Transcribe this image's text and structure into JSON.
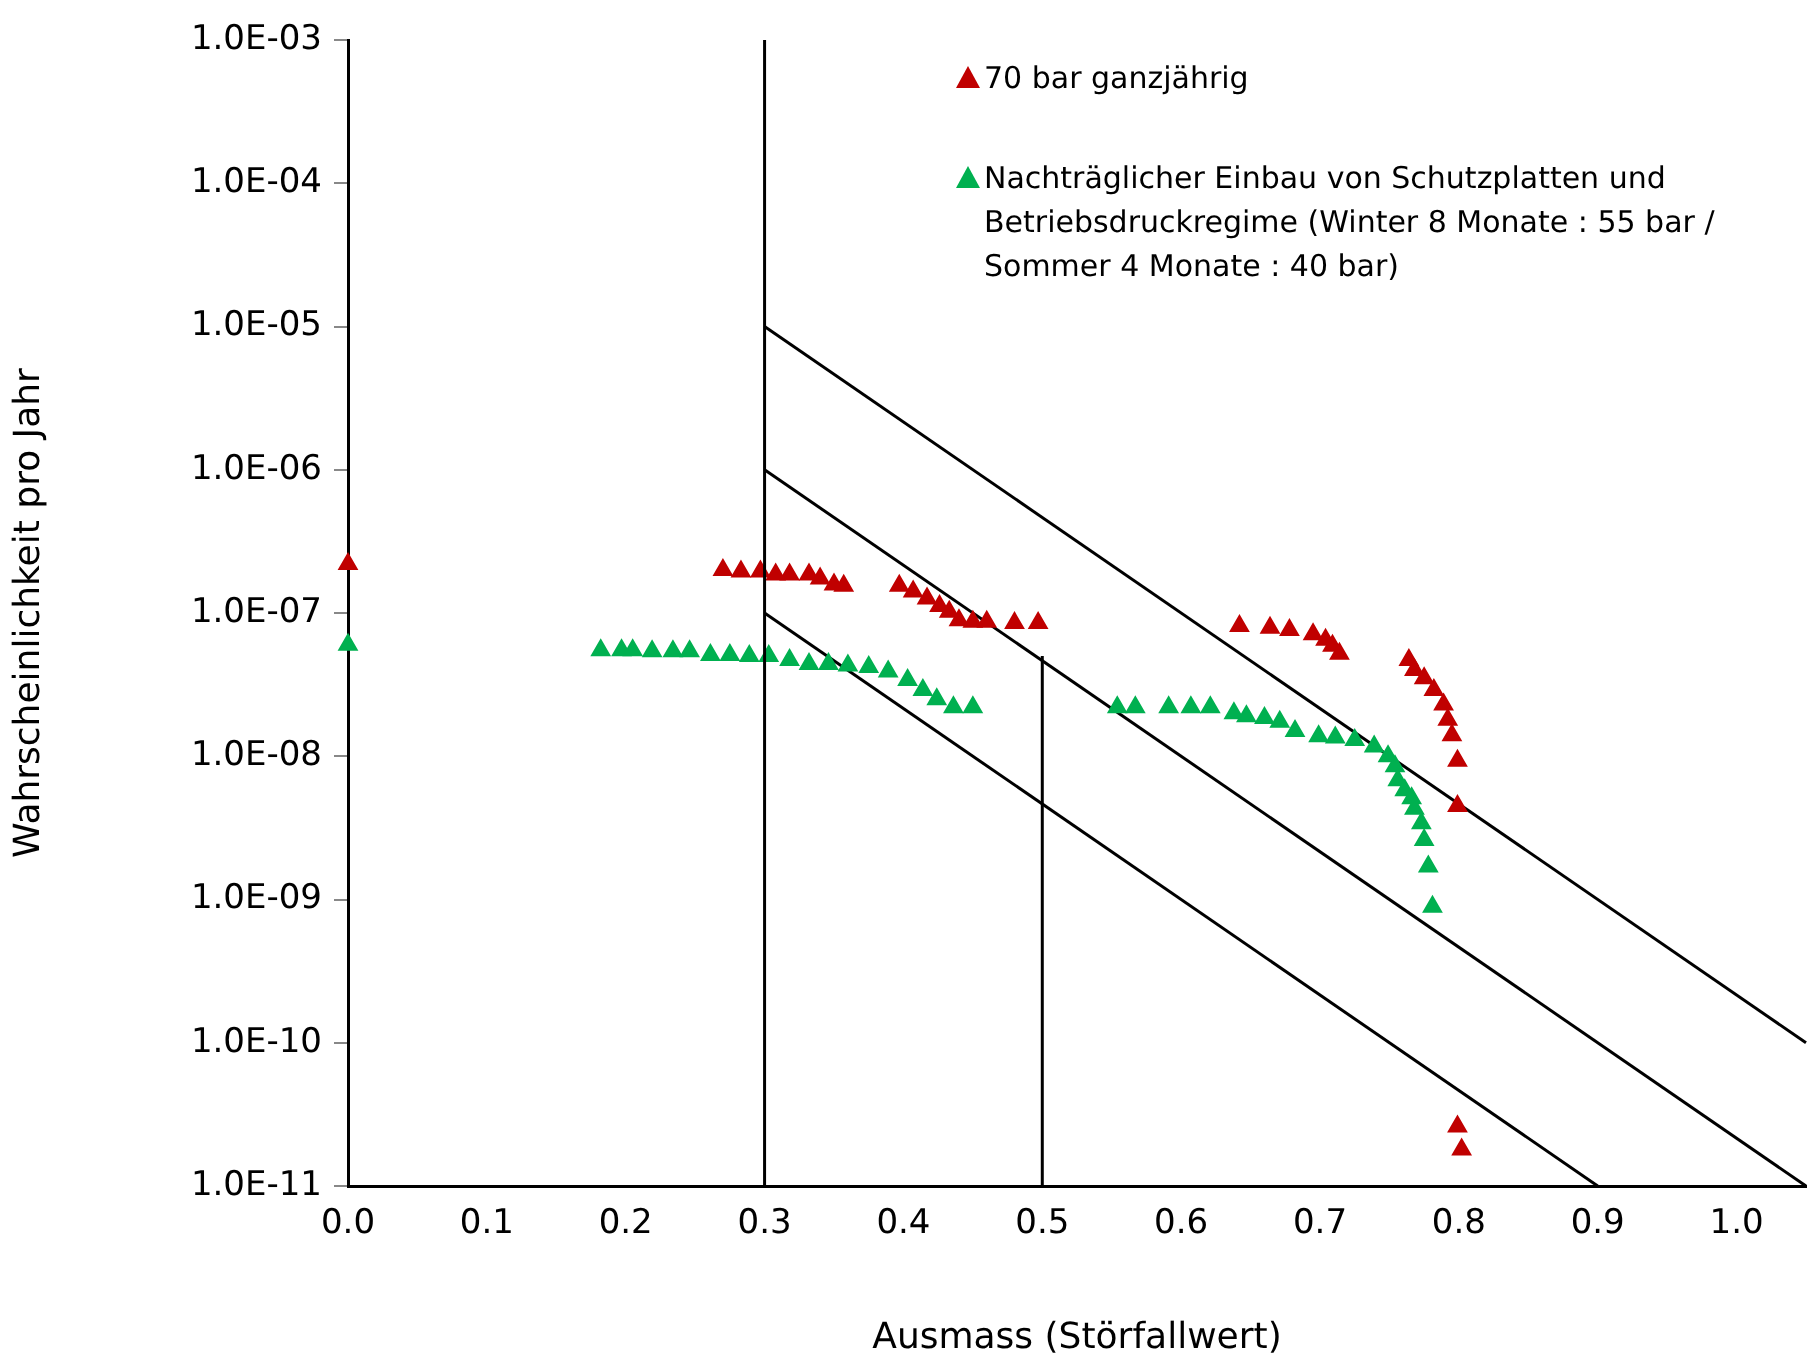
{
  "chart_data": {
    "type": "scatter",
    "xlabel": "Ausmass (Störfallwert)",
    "ylabel": "Wahrscheinlichkeit pro Jahr",
    "log": "y",
    "grid": false,
    "legend": "top right",
    "marker": "triangle",
    "xlim": [
      0,
      1.05
    ],
    "xticks": [
      {
        "value": 0,
        "label": "0.0"
      },
      {
        "value": 0.1,
        "label": "0.1"
      },
      {
        "value": 0.2,
        "label": "0.2"
      },
      {
        "value": 0.3,
        "label": "0.3"
      },
      {
        "value": 0.4,
        "label": "0.4"
      },
      {
        "value": 0.5,
        "label": "0.5"
      },
      {
        "value": 0.6,
        "label": "0.6"
      },
      {
        "value": 0.7,
        "label": "0.7"
      },
      {
        "value": 0.8,
        "label": "0.8"
      },
      {
        "value": 0.9,
        "label": "0.9"
      },
      {
        "value": 1,
        "label": "1.0"
      }
    ],
    "ylim": [
      1e-11,
      0.001
    ],
    "yticks": [
      {
        "value": 1e-11,
        "label": "1.0E-11"
      },
      {
        "value": 1e-10,
        "label": "1.0E-10"
      },
      {
        "value": 1e-09,
        "label": "1.0E-09"
      },
      {
        "value": 1e-08,
        "label": "1.0E-08"
      },
      {
        "value": 1e-07,
        "label": "1.0E-07"
      },
      {
        "value": 1e-06,
        "label": "1.0E-06"
      },
      {
        "value": 1e-05,
        "label": "1.0E-05"
      },
      {
        "value": 0.0001,
        "label": "1.0E-04"
      },
      {
        "value": 0.001,
        "label": "1.0E-03"
      }
    ],
    "ref_lines": [
      {
        "axis": "x",
        "value": 0.3,
        "color": "#000000"
      }
    ],
    "series": [
      {
        "name": "70 bar ganzjährig",
        "color": "#c00000",
        "x": [
          0,
          0.27,
          0.283,
          0.297,
          0.308,
          0.318,
          0.332,
          0.34,
          0.35,
          0.357,
          0.397,
          0.407,
          0.417,
          0.426,
          0.433,
          0.44,
          0.45,
          0.46,
          0.48,
          0.497,
          0.642,
          0.664,
          0.678,
          0.695,
          0.704,
          0.709,
          0.714,
          0.764,
          0.768,
          0.775,
          0.782,
          0.789,
          0.792,
          0.795,
          0.799,
          0.799,
          0.799,
          0.802
        ],
        "values": [
          2.2e-07,
          2e-07,
          1.95e-07,
          1.95e-07,
          1.86e-07,
          1.86e-07,
          1.86e-07,
          1.74e-07,
          1.58e-07,
          1.55e-07,
          1.55e-07,
          1.41e-07,
          1.26e-07,
          1.12e-07,
          1.02e-07,
          8.9e-08,
          8.7e-08,
          8.7e-08,
          8.5e-08,
          8.5e-08,
          8.1e-08,
          7.9e-08,
          7.6e-08,
          7.1e-08,
          6.5e-08,
          5.9e-08,
          5.2e-08,
          4.7e-08,
          4e-08,
          3.5e-08,
          2.9e-08,
          2.3e-08,
          1.8e-08,
          1.4e-08,
          9.3e-09,
          4.5e-09,
          2.6e-11,
          1.8e-11
        ]
      },
      {
        "name": "Nachträglicher Einbau von Schutzplatten und Betriebsdruckregime (Winter 8 Monate : 55 bar / Sommer 4 Monate : 40 bar)",
        "color": "#00b050",
        "x": [
          0,
          0.182,
          0.197,
          0.205,
          0.219,
          0.234,
          0.246,
          0.261,
          0.275,
          0.289,
          0.303,
          0.318,
          0.332,
          0.346,
          0.36,
          0.375,
          0.389,
          0.403,
          0.414,
          0.424,
          0.436,
          0.45,
          0.554,
          0.567,
          0.591,
          0.607,
          0.621,
          0.638,
          0.647,
          0.66,
          0.671,
          0.682,
          0.699,
          0.711,
          0.725,
          0.739,
          0.749,
          0.754,
          0.756,
          0.761,
          0.766,
          0.768,
          0.773,
          0.775,
          0.778,
          0.781
        ],
        "values": [
          6e-08,
          5.5e-08,
          5.5e-08,
          5.5e-08,
          5.4e-08,
          5.4e-08,
          5.4e-08,
          5.1e-08,
          5.1e-08,
          5e-08,
          5e-08,
          4.7e-08,
          4.4e-08,
          4.4e-08,
          4.3e-08,
          4.2e-08,
          3.9e-08,
          3.4e-08,
          2.9e-08,
          2.5e-08,
          2.2e-08,
          2.2e-08,
          2.2e-08,
          2.2e-08,
          2.2e-08,
          2.2e-08,
          2.2e-08,
          2e-08,
          1.9e-08,
          1.85e-08,
          1.74e-08,
          1.5e-08,
          1.38e-08,
          1.35e-08,
          1.3e-08,
          1.17e-08,
          1e-08,
          8.5e-09,
          6.8e-09,
          5.8e-09,
          5.1e-09,
          4.3e-09,
          3.4e-09,
          2.6e-09,
          1.7e-09,
          8.9e-10
        ]
      },
      {
        "type": "line",
        "color": "#000000",
        "marker": "none",
        "line_style": "solid",
        "x": [
          0.3,
          1.05
        ],
        "values": [
          1e-05,
          1e-10
        ]
      },
      {
        "type": "line",
        "color": "#000000",
        "marker": "none",
        "line_style": "solid",
        "x": [
          0.3,
          1.05
        ],
        "values": [
          1e-06,
          1e-11
        ]
      },
      {
        "type": "line",
        "color": "#000000",
        "marker": "none",
        "line_style": "solid",
        "x": [
          0.3,
          0.9
        ],
        "values": [
          1e-07,
          1e-11
        ]
      },
      {
        "type": "line",
        "color": "#000000",
        "marker": "none",
        "line_style": "solid",
        "x": [
          0.5,
          0.5
        ],
        "values": [
          1e-11,
          5e-08
        ]
      }
    ]
  }
}
